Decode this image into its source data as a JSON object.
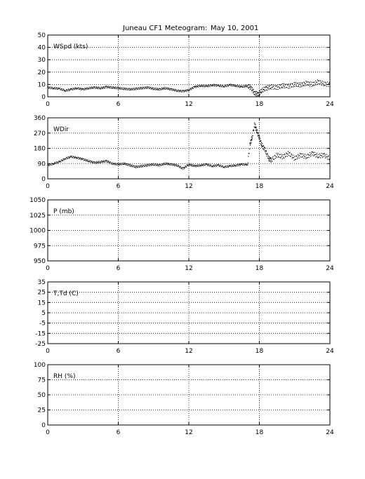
{
  "figure": {
    "title": "Juneau CF1 Meteogram:",
    "date": "May 10, 2001"
  },
  "chart_data": [
    {
      "type": "scatter",
      "label": "WSpd (kts)",
      "x_ticks": [
        "0",
        "6",
        "12",
        "18",
        "24"
      ],
      "xlim": [
        0,
        24
      ],
      "ylim": [
        0,
        50
      ],
      "y_ticks": [
        "0",
        "10",
        "20",
        "30",
        "40",
        "50"
      ],
      "grid": true,
      "series": [
        {
          "values": [
            [
              0,
              7.5
            ],
            [
              0.5,
              7
            ],
            [
              1,
              6.5
            ],
            [
              1.5,
              5
            ],
            [
              2,
              6
            ],
            [
              2.5,
              7
            ],
            [
              3,
              6
            ],
            [
              3.5,
              7
            ],
            [
              4,
              7.5
            ],
            [
              4.5,
              7
            ],
            [
              5,
              8
            ],
            [
              5.5,
              7.5
            ],
            [
              6,
              7
            ],
            [
              6.5,
              6.5
            ],
            [
              7,
              6
            ],
            [
              7.5,
              6.5
            ],
            [
              8,
              7
            ],
            [
              8.5,
              7.5
            ],
            [
              9,
              6.5
            ],
            [
              9.5,
              6
            ],
            [
              10,
              7
            ],
            [
              10.5,
              6
            ],
            [
              11,
              5
            ],
            [
              11.5,
              4.5
            ],
            [
              12,
              5.5
            ],
            [
              12.5,
              8
            ],
            [
              13,
              9
            ],
            [
              13.5,
              8.5
            ],
            [
              14,
              9.5
            ],
            [
              14.5,
              9
            ],
            [
              15,
              8.5
            ],
            [
              15.5,
              9.5
            ],
            [
              16,
              9
            ],
            [
              16.5,
              8
            ],
            [
              17,
              9
            ],
            [
              17.3,
              7
            ],
            [
              17.6,
              3
            ],
            [
              17.9,
              2
            ],
            [
              18.2,
              5
            ],
            [
              18.6,
              7
            ],
            [
              19,
              8
            ],
            [
              19.5,
              7.5
            ],
            [
              20,
              9
            ],
            [
              20.5,
              8.5
            ],
            [
              21,
              10
            ],
            [
              21.5,
              9.5
            ],
            [
              22,
              11
            ],
            [
              22.5,
              10
            ],
            [
              23,
              12
            ],
            [
              23.5,
              10.5
            ],
            [
              24,
              10
            ]
          ]
        }
      ]
    },
    {
      "type": "scatter",
      "label": "WDir",
      "x_ticks": [
        "0",
        "6",
        "12",
        "18",
        "24"
      ],
      "xlim": [
        0,
        24
      ],
      "ylim": [
        0,
        360
      ],
      "y_ticks": [
        "0",
        "90",
        "180",
        "270",
        "360"
      ],
      "grid": true,
      "series": [
        {
          "values": [
            [
              0,
              80
            ],
            [
              0.5,
              90
            ],
            [
              1,
              100
            ],
            [
              1.5,
              120
            ],
            [
              2,
              130
            ],
            [
              2.5,
              125
            ],
            [
              3,
              115
            ],
            [
              3.5,
              105
            ],
            [
              4,
              95
            ],
            [
              4.5,
              100
            ],
            [
              5,
              105
            ],
            [
              5.5,
              90
            ],
            [
              6,
              85
            ],
            [
              6.5,
              90
            ],
            [
              7,
              80
            ],
            [
              7.5,
              70
            ],
            [
              8,
              75
            ],
            [
              8.5,
              80
            ],
            [
              9,
              85
            ],
            [
              9.5,
              80
            ],
            [
              10,
              90
            ],
            [
              10.5,
              85
            ],
            [
              11,
              80
            ],
            [
              11.5,
              60
            ],
            [
              12,
              85
            ],
            [
              12.5,
              75
            ],
            [
              13,
              80
            ],
            [
              13.5,
              85
            ],
            [
              14,
              75
            ],
            [
              14.5,
              80
            ],
            [
              15,
              70
            ],
            [
              15.5,
              75
            ],
            [
              16,
              80
            ],
            [
              16.5,
              85
            ],
            [
              17,
              85
            ],
            [
              17.2,
              200
            ],
            [
              17.4,
              250
            ],
            [
              17.6,
              320
            ],
            [
              17.8,
              280
            ],
            [
              18,
              240
            ],
            [
              18.2,
              200
            ],
            [
              18.5,
              170
            ],
            [
              18.8,
              120
            ],
            [
              19,
              110
            ],
            [
              19.5,
              140
            ],
            [
              20,
              130
            ],
            [
              20.5,
              150
            ],
            [
              21,
              120
            ],
            [
              21.5,
              140
            ],
            [
              22,
              130
            ],
            [
              22.5,
              150
            ],
            [
              23,
              135
            ],
            [
              23.5,
              140
            ],
            [
              24,
              120
            ]
          ]
        }
      ]
    },
    {
      "type": "scatter",
      "label": "P (mb)",
      "x_ticks": [
        "0",
        "6",
        "12",
        "18",
        "24"
      ],
      "xlim": [
        0,
        24
      ],
      "ylim": [
        950,
        1050
      ],
      "y_ticks": [
        "950",
        "975",
        "1000",
        "1025",
        "1050"
      ],
      "grid": true,
      "series": []
    },
    {
      "type": "scatter",
      "label": "T,Td (C)",
      "x_ticks": [
        "0",
        "6",
        "12",
        "18",
        "24"
      ],
      "xlim": [
        0,
        24
      ],
      "ylim": [
        -25,
        35
      ],
      "y_ticks": [
        "-25",
        "-15",
        "-5",
        "5",
        "15",
        "25",
        "35"
      ],
      "grid": true,
      "series": []
    },
    {
      "type": "scatter",
      "label": "RH (%)",
      "x_ticks": [
        "0",
        "6",
        "12",
        "18",
        "24"
      ],
      "xlim": [
        0,
        24
      ],
      "ylim": [
        0,
        100
      ],
      "y_ticks": [
        "0",
        "25",
        "50",
        "75",
        "100"
      ],
      "grid": true,
      "series": []
    }
  ]
}
